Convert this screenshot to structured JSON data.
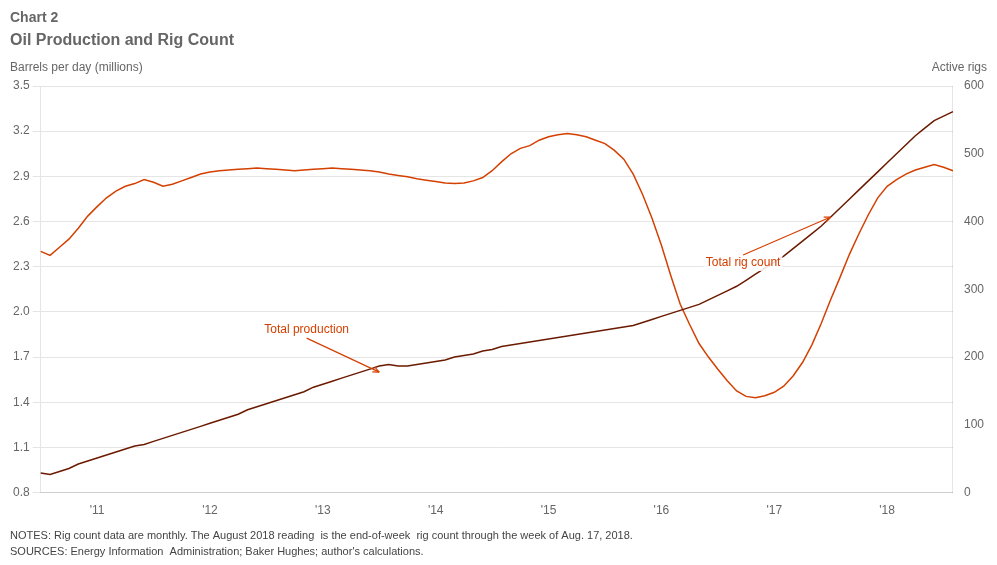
{
  "chart_data": {
    "type": "line",
    "title": "Chart 2",
    "subtitle": "Oil Production and Rig Count",
    "ylabel": "Barrels per day (millions)",
    "y2label": "Active rigs",
    "notes": "NOTES: Rig count data are monthly. The August 2018 reading  is the end-of-week  rig count through the week of Aug. 17, 2018.",
    "sources": "SOURCES: Energy Information  Administration; Baker Hughes; author's calculations.",
    "categories": [
      null,
      null,
      null,
      null,
      null,
      null,
      "'11",
      null,
      null,
      null,
      null,
      null,
      null,
      null,
      null,
      null,
      null,
      null,
      "'12",
      null,
      null,
      null,
      null,
      null,
      null,
      null,
      null,
      null,
      null,
      null,
      "'13",
      null,
      null,
      null,
      null,
      null,
      null,
      null,
      null,
      null,
      null,
      null,
      "'14",
      null,
      null,
      null,
      null,
      null,
      null,
      null,
      null,
      null,
      null,
      null,
      "'15",
      null,
      null,
      null,
      null,
      null,
      null,
      null,
      null,
      null,
      null,
      null,
      "'16",
      null,
      null,
      null,
      null,
      null,
      null,
      null,
      null,
      null,
      null,
      null,
      "'17",
      null,
      null,
      null,
      null,
      null,
      null,
      null,
      null,
      null,
      null,
      null,
      "'18",
      null,
      null,
      null,
      null,
      null,
      null,
      null
    ],
    "series": [
      {
        "color": "#6B1A00",
        "values": [
          0.93,
          0.92,
          0.94,
          0.96,
          0.99,
          1.01,
          1.03,
          1.05,
          1.07,
          1.09,
          1.11,
          1.12,
          1.14,
          1.16,
          1.18,
          1.2,
          1.22,
          1.24,
          1.26,
          1.28,
          1.3,
          1.32,
          1.35,
          1.37,
          1.39,
          1.41,
          1.43,
          1.45,
          1.47,
          1.5,
          1.52,
          1.54,
          1.56,
          1.58,
          1.6,
          1.62,
          1.64,
          1.65,
          1.64,
          1.64,
          1.65,
          1.66,
          1.67,
          1.68,
          1.7,
          1.71,
          1.72,
          1.74,
          1.75,
          1.77,
          1.78,
          1.79,
          1.8,
          1.81,
          1.82,
          1.83,
          1.84,
          1.85,
          1.86,
          1.87,
          1.88,
          1.89,
          1.9,
          1.91,
          1.93,
          1.95,
          1.97,
          1.99,
          2.01,
          2.03,
          2.05,
          2.08,
          2.11,
          2.14,
          2.17,
          2.21,
          2.25,
          2.29,
          2.33,
          2.37,
          2.42,
          2.47,
          2.52,
          2.57,
          2.63,
          2.69,
          2.75,
          2.81,
          2.87,
          2.93,
          2.99,
          3.05,
          3.11,
          3.17,
          3.22,
          3.27,
          3.3,
          3.33
        ]
      },
      {
        "color": "#D44000",
        "axis": "y2",
        "values": [
          356,
          350,
          362,
          374,
          390,
          408,
          422,
          435,
          445,
          452,
          456,
          462,
          458,
          452,
          455,
          460,
          465,
          470,
          473,
          475,
          476,
          477,
          478,
          479,
          478,
          477,
          476,
          475,
          476,
          477,
          478,
          479,
          478,
          477,
          476,
          475,
          473,
          470,
          468,
          466,
          463,
          461,
          459,
          457,
          456,
          457,
          460,
          465,
          475,
          488,
          500,
          508,
          512,
          520,
          525,
          528,
          530,
          528,
          525,
          520,
          515,
          505,
          492,
          470,
          440,
          405,
          365,
          320,
          278,
          248,
          220,
          200,
          182,
          165,
          150,
          142,
          140,
          143,
          148,
          157,
          172,
          192,
          218,
          250,
          285,
          318,
          352,
          382,
          410,
          435,
          452,
          462,
          470,
          476,
          480,
          484,
          480,
          475
        ]
      }
    ],
    "ylim": [
      0.8,
      3.5
    ],
    "yticks": [
      0.8,
      1.1,
      1.4,
      1.7,
      {
        "value": 2.0,
        "label": "2.0"
      },
      2.3,
      2.6,
      2.9,
      3.2,
      3.5
    ],
    "y2lim": [
      0,
      600
    ],
    "y2ticks": [
      0,
      100,
      200,
      300,
      400,
      500,
      600
    ],
    "grid": true,
    "annotations": [
      {
        "text": "Total production",
        "x": 36,
        "y": 1.6,
        "color": "#D44000"
      },
      {
        "text": "Total rig count",
        "x": 84,
        "y": 2.63,
        "color": "#D44000"
      }
    ]
  }
}
